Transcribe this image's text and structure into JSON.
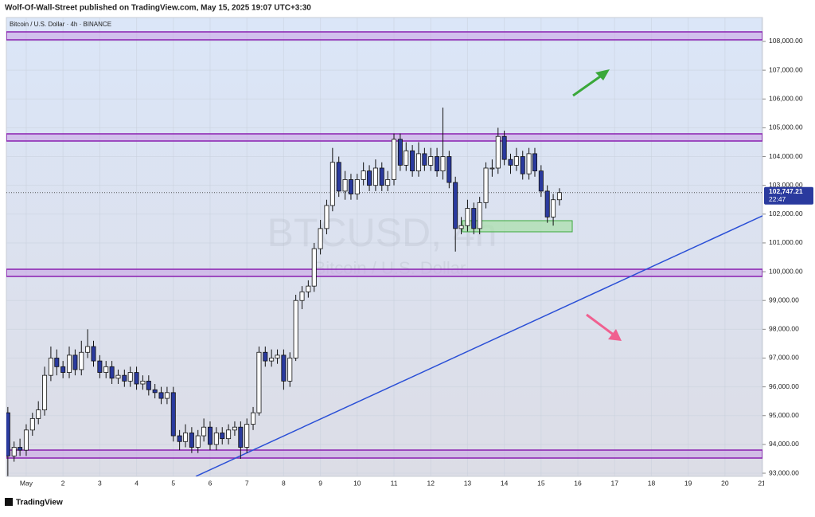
{
  "header": {
    "publisher": "Wolf-Of-Wall-Street published on TradingView.com, May 15, 2025 19:07 UTC+3:30",
    "footer": "TradingView"
  },
  "chart_data": {
    "type": "candlestick",
    "title": "Bitcoin / U.S. Dollar · 4h · BINANCE",
    "watermark": "BTCUSD, 4h",
    "watermark_subtitle": "Bitcoin / U.S. Dollar",
    "x": [
      0.5,
      0.67,
      0.83,
      1,
      1.17,
      1.33,
      1.5,
      1.67,
      1.83,
      2,
      2.17,
      2.33,
      2.5,
      2.67,
      2.83,
      3,
      3.17,
      3.33,
      3.5,
      3.67,
      3.83,
      4,
      4.17,
      4.33,
      4.5,
      4.67,
      4.83,
      5,
      5.17,
      5.33,
      5.5,
      5.67,
      5.83,
      6,
      6.17,
      6.33,
      6.5,
      6.67,
      6.83,
      7,
      7.17,
      7.33,
      7.5,
      7.67,
      7.83,
      8,
      8.17,
      8.33,
      8.5,
      8.67,
      8.83,
      9,
      9.17,
      9.33,
      9.5,
      9.67,
      9.83,
      10,
      10.17,
      10.33,
      10.5,
      10.67,
      10.83,
      11,
      11.17,
      11.33,
      11.5,
      11.67,
      11.83,
      12,
      12.17,
      12.33,
      12.5,
      12.67,
      12.83,
      13,
      13.17,
      13.33,
      13.5,
      13.67,
      13.83,
      14,
      14.17,
      14.33,
      14.5,
      14.67,
      14.83,
      15,
      15.17,
      15.33,
      15.5
    ],
    "open": [
      95100,
      93600,
      93900,
      93800,
      94500,
      94900,
      95200,
      96400,
      97000,
      96700,
      96500,
      97100,
      96600,
      97200,
      97400,
      96900,
      96500,
      96700,
      96300,
      96400,
      96200,
      96500,
      96100,
      96200,
      95900,
      95800,
      95600,
      95800,
      94300,
      94100,
      94400,
      93900,
      94300,
      94600,
      94000,
      94400,
      94200,
      94500,
      94600,
      93900,
      94700,
      95100,
      97200,
      96900,
      97000,
      97100,
      96200,
      97000,
      99000,
      99300,
      99500,
      100800,
      101500,
      102300,
      103800,
      102800,
      103200,
      102700,
      103200,
      103500,
      103000,
      103600,
      103000,
      103200,
      104600,
      103700,
      104200,
      103500,
      104100,
      103700,
      104000,
      103500,
      104000,
      103100,
      101500,
      101600,
      102200,
      101500,
      102400,
      103600,
      103600,
      104700,
      103900,
      103700,
      104000,
      103400,
      104100,
      103500,
      102800,
      101900,
      102500
    ],
    "high": [
      95300,
      94100,
      94200,
      94700,
      95100,
      95500,
      96700,
      97400,
      97300,
      96900,
      97400,
      97300,
      97600,
      98000,
      97600,
      97100,
      96900,
      96900,
      96600,
      96600,
      96700,
      96700,
      96400,
      96400,
      96100,
      96000,
      96000,
      96000,
      94500,
      94700,
      94600,
      94500,
      94900,
      94800,
      94600,
      94600,
      94700,
      94800,
      94800,
      94900,
      95300,
      97400,
      97400,
      97300,
      97300,
      97300,
      97200,
      99200,
      99500,
      99700,
      101000,
      101800,
      102500,
      104300,
      104000,
      103500,
      103400,
      103400,
      103800,
      103700,
      103900,
      103800,
      103500,
      104800,
      104800,
      104500,
      104400,
      104500,
      104300,
      104300,
      104300,
      105700,
      104200,
      103300,
      101900,
      102500,
      102400,
      102600,
      103800,
      103900,
      105000,
      104900,
      104100,
      104300,
      104200,
      104300,
      104300,
      103700,
      103000,
      102700,
      102900
    ],
    "low": [
      92900,
      93400,
      93600,
      93600,
      94300,
      94700,
      95000,
      96200,
      96400,
      96300,
      96300,
      96400,
      96400,
      97000,
      96700,
      96300,
      96300,
      96100,
      96100,
      96000,
      96000,
      95900,
      95900,
      95700,
      95600,
      95400,
      95400,
      94100,
      93800,
      93900,
      93700,
      93700,
      94100,
      93800,
      93800,
      94000,
      94000,
      94300,
      93500,
      93700,
      94500,
      95000,
      96700,
      96700,
      96800,
      95900,
      96000,
      96900,
      98700,
      99100,
      99300,
      100600,
      101300,
      102100,
      102600,
      102500,
      102500,
      102500,
      103000,
      102800,
      102800,
      102800,
      102800,
      103000,
      103500,
      103500,
      103300,
      103300,
      103500,
      103500,
      103300,
      103200,
      102900,
      100700,
      101300,
      101400,
      101300,
      101300,
      102200,
      103300,
      103400,
      103700,
      103400,
      103500,
      103200,
      103200,
      103300,
      102600,
      101700,
      101600,
      102300
    ],
    "close": [
      93600,
      93900,
      93800,
      94500,
      94900,
      95200,
      96400,
      97000,
      96700,
      96500,
      97100,
      96600,
      97200,
      97400,
      96900,
      96500,
      96700,
      96300,
      96400,
      96200,
      96500,
      96100,
      96200,
      95900,
      95800,
      95600,
      95800,
      94300,
      94100,
      94400,
      93900,
      94300,
      94600,
      94000,
      94400,
      94200,
      94500,
      94600,
      93900,
      94700,
      95100,
      97200,
      96900,
      97000,
      97100,
      96200,
      97000,
      99000,
      99300,
      99500,
      100800,
      101500,
      102300,
      103800,
      102800,
      103200,
      102700,
      103200,
      103500,
      103000,
      103600,
      103000,
      103200,
      104600,
      103700,
      104200,
      103500,
      104100,
      103700,
      104000,
      103500,
      104000,
      103100,
      101500,
      101600,
      102200,
      101500,
      102400,
      103600,
      103600,
      104700,
      103900,
      103700,
      104000,
      103400,
      104100,
      103500,
      102800,
      101900,
      102500,
      102747.21
    ],
    "up_color": "#ffffff",
    "down_color": "#2a3a9e",
    "grid": true,
    "last_price_label": "102,747.21",
    "countdown": "22:47",
    "xlim": [
      0.46,
      21.02
    ],
    "ylim": [
      92890,
      108830
    ],
    "xticks": [
      {
        "value": 1,
        "label": "May"
      },
      2,
      3,
      4,
      5,
      6,
      7,
      8,
      9,
      10,
      11,
      12,
      13,
      14,
      15,
      16,
      17,
      18,
      19,
      20,
      21
    ],
    "yticks": [
      {
        "value": 93000,
        "label": "93,000.00"
      },
      {
        "value": 94000,
        "label": "94,000.00"
      },
      {
        "value": 95000,
        "label": "95,000.00"
      },
      {
        "value": 96000,
        "label": "96,000.00"
      },
      {
        "value": 97000,
        "label": "97,000.00"
      },
      {
        "value": 98000,
        "label": "98,000.00"
      },
      {
        "value": 99000,
        "label": "99,000.00"
      },
      {
        "value": 100000,
        "label": "100,000.00"
      },
      {
        "value": 101000,
        "label": "101,000.00"
      },
      {
        "value": 102000,
        "label": "102,000.00"
      },
      {
        "value": 103000,
        "label": "103,000.00"
      },
      {
        "value": 104000,
        "label": "104,000.00"
      },
      {
        "value": 105000,
        "label": "105,000.00"
      },
      {
        "value": 106000,
        "label": "106,000.00"
      },
      {
        "value": 107000,
        "label": "107,000.00"
      },
      {
        "value": 108000,
        "label": "108,000.00"
      }
    ]
  }
}
